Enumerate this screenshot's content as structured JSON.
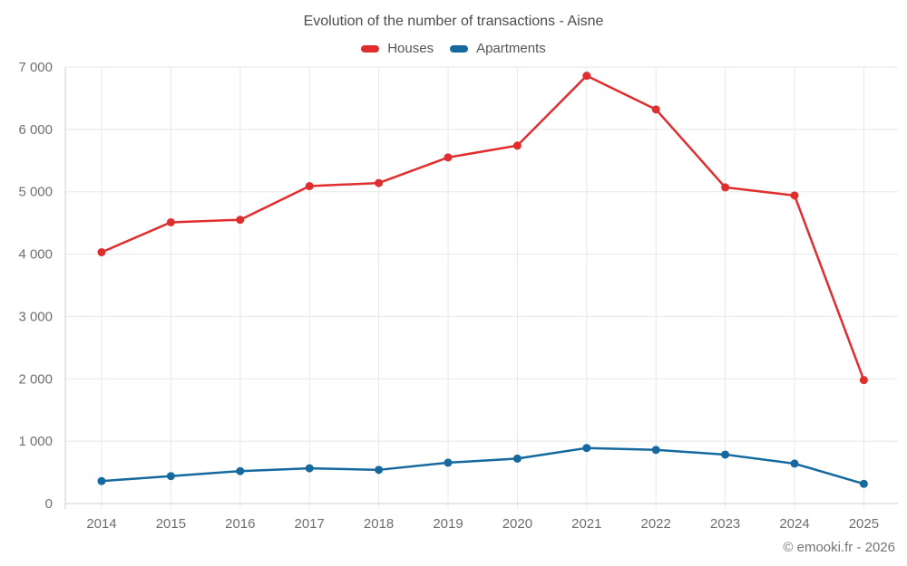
{
  "page": {
    "background_color": "#ffffff"
  },
  "chart_data": {
    "type": "line",
    "title": "Evolution of the number of transactions - Aisne",
    "xlabel": "",
    "ylabel": "",
    "ylim": [
      0,
      7000
    ],
    "grid": true,
    "legend_position": "top-center",
    "categories": [
      "2014",
      "2015",
      "2016",
      "2017",
      "2018",
      "2019",
      "2020",
      "2021",
      "2022",
      "2023",
      "2024",
      "2025"
    ],
    "series": [
      {
        "name": "Houses",
        "color": "#e02e2e",
        "values": [
          4030,
          4510,
          4550,
          5090,
          5140,
          5550,
          5740,
          6860,
          6320,
          5070,
          4940,
          1980
        ]
      },
      {
        "name": "Apartments",
        "color": "#15699f",
        "values": [
          360,
          440,
          520,
          565,
          540,
          655,
          720,
          890,
          860,
          785,
          640,
          315
        ]
      }
    ],
    "y_ticks": [
      {
        "value": 0,
        "label": "0"
      },
      {
        "value": 1000,
        "label": "1 000"
      },
      {
        "value": 2000,
        "label": "2 000"
      },
      {
        "value": 3000,
        "label": "3 000"
      },
      {
        "value": 4000,
        "label": "4 000"
      },
      {
        "value": 5000,
        "label": "5 000"
      },
      {
        "value": 6000,
        "label": "6 000"
      },
      {
        "value": 7000,
        "label": "7 000"
      }
    ]
  },
  "footer": {
    "attribution": "© emooki.fr - 2026"
  }
}
